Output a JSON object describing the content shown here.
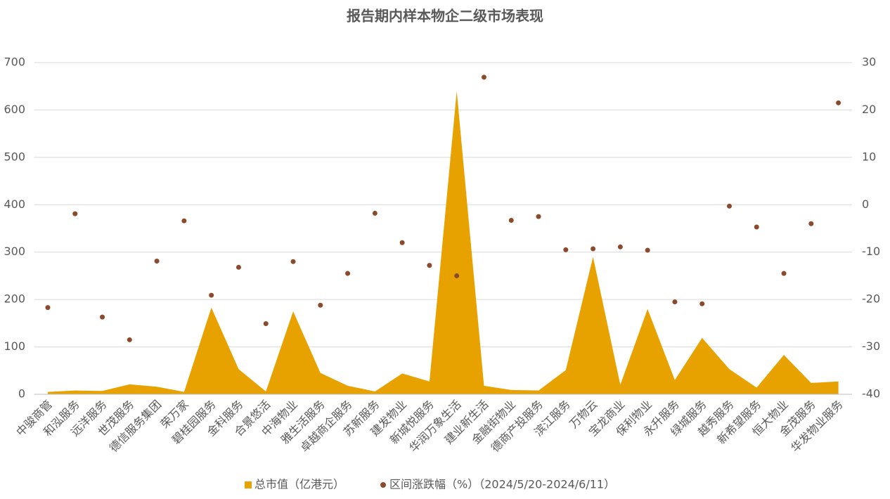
{
  "chart_data": {
    "type": "area",
    "title": "报告期内样本物企二级市场表现",
    "categories": [
      "中骏商管",
      "和泓服务",
      "远洋服务",
      "世茂服务",
      "德信服务集团",
      "荣万家",
      "碧桂园服务",
      "金科服务",
      "合景悠活",
      "中海物业",
      "雅生活服务",
      "卓越商企服务",
      "苏新服务",
      "建发物业",
      "新城悦服务",
      "华润万象生活",
      "建业新生活",
      "金融街物业",
      "德商产投服务",
      "滨江服务",
      "万物云",
      "宝龙商业",
      "保利物业",
      "永升服务",
      "绿城服务",
      "越秀服务",
      "新希望服务",
      "恒大物业",
      "金茂服务",
      "华发物业服务"
    ],
    "series": [
      {
        "name": "总市值（亿港元）",
        "type": "area",
        "color": "#e8a200",
        "values": [
          5,
          8,
          7,
          21,
          16,
          5,
          183,
          53,
          6,
          175,
          45,
          18,
          6,
          44,
          27,
          640,
          18,
          9,
          8,
          51,
          290,
          20,
          180,
          30,
          119,
          53,
          14,
          83,
          24,
          27
        ]
      },
      {
        "name": "区间涨跌幅（%）（2024/5/20-2024/6/11）",
        "type": "scatter",
        "axis": "y2",
        "color": "#8b4a2b",
        "values": [
          -21.7,
          -1.9,
          -23.7,
          -28.5,
          -11.9,
          -3.4,
          -19.1,
          -13.2,
          -25.1,
          -12.0,
          -21.2,
          -14.5,
          -1.8,
          -8.0,
          -12.8,
          -15.0,
          26.9,
          -3.3,
          -2.5,
          -9.5,
          -9.3,
          -8.9,
          -9.6,
          -20.5,
          -20.9,
          -0.3,
          -4.7,
          -14.5,
          -4.0,
          21.5
        ]
      }
    ],
    "ylim": [
      0,
      700
    ],
    "yticks": [
      0,
      100,
      200,
      300,
      400,
      500,
      600,
      700
    ],
    "y2lim": [
      -40,
      30
    ],
    "y2ticks": [
      -40,
      -30,
      -20,
      -10,
      0,
      10,
      20,
      30
    ],
    "grid": true,
    "legend": "bottom"
  }
}
